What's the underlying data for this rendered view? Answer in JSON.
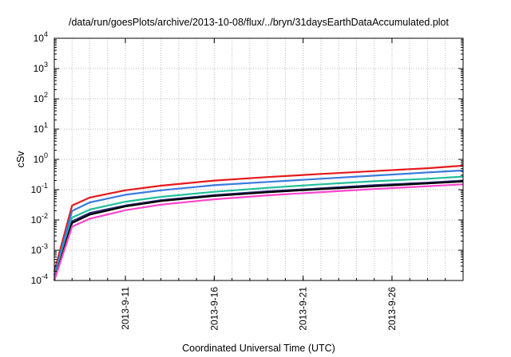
{
  "chart_data": {
    "type": "line",
    "title": "/data/run/goesPlots/archive/2013-10-08/flux/../bryn/31daysEarthDataAccumulated.plot",
    "xlabel": "Coordinated Universal Time (UTC)",
    "ylabel": "cSv",
    "y_scale": "log",
    "ylim": [
      0.0001,
      10000
    ],
    "xlim": [
      "2013-09-07",
      "2013-09-30"
    ],
    "grid": true,
    "x_ticks": [
      "2013-9-11",
      "2013-9-16",
      "2013-9-21",
      "2013-9-26"
    ],
    "y_ticks": [
      {
        "base": "10",
        "exp": "-4"
      },
      {
        "base": "10",
        "exp": "-3"
      },
      {
        "base": "10",
        "exp": "-2"
      },
      {
        "base": "10",
        "exp": "-1"
      },
      {
        "base": "10",
        "exp": "0"
      },
      {
        "base": "10",
        "exp": "1"
      },
      {
        "base": "10",
        "exp": "2"
      },
      {
        "base": "10",
        "exp": "3"
      },
      {
        "base": "10",
        "exp": "4"
      }
    ],
    "x": [
      "2013-09-07",
      "2013-09-08",
      "2013-09-09",
      "2013-09-11",
      "2013-09-13",
      "2013-09-16",
      "2013-09-19",
      "2013-09-22",
      "2013-09-25",
      "2013-09-28",
      "2013-09-30"
    ],
    "series": [
      {
        "color": "#e41a1c",
        "values": [
          0.0002,
          0.03,
          0.055,
          0.095,
          0.135,
          0.2,
          0.26,
          0.33,
          0.41,
          0.51,
          0.62
        ]
      },
      {
        "color": "#3a7be0",
        "values": [
          0.00015,
          0.02,
          0.038,
          0.068,
          0.095,
          0.14,
          0.18,
          0.23,
          0.29,
          0.37,
          0.43
        ]
      },
      {
        "color": "#1fbf9a",
        "values": [
          0.00012,
          0.012,
          0.022,
          0.04,
          0.058,
          0.085,
          0.115,
          0.15,
          0.19,
          0.23,
          0.27
        ]
      },
      {
        "color": "#2a2a7a",
        "values": [
          0.0001,
          0.009,
          0.017,
          0.03,
          0.045,
          0.066,
          0.088,
          0.11,
          0.14,
          0.17,
          0.2
        ]
      },
      {
        "color": "#000000",
        "values": [
          0.0001,
          0.008,
          0.015,
          0.028,
          0.042,
          0.062,
          0.082,
          0.104,
          0.13,
          0.16,
          0.185
        ]
      },
      {
        "color": "#ff44cc",
        "values": [
          0.0001,
          0.006,
          0.011,
          0.021,
          0.032,
          0.048,
          0.065,
          0.083,
          0.105,
          0.13,
          0.15
        ]
      }
    ]
  }
}
